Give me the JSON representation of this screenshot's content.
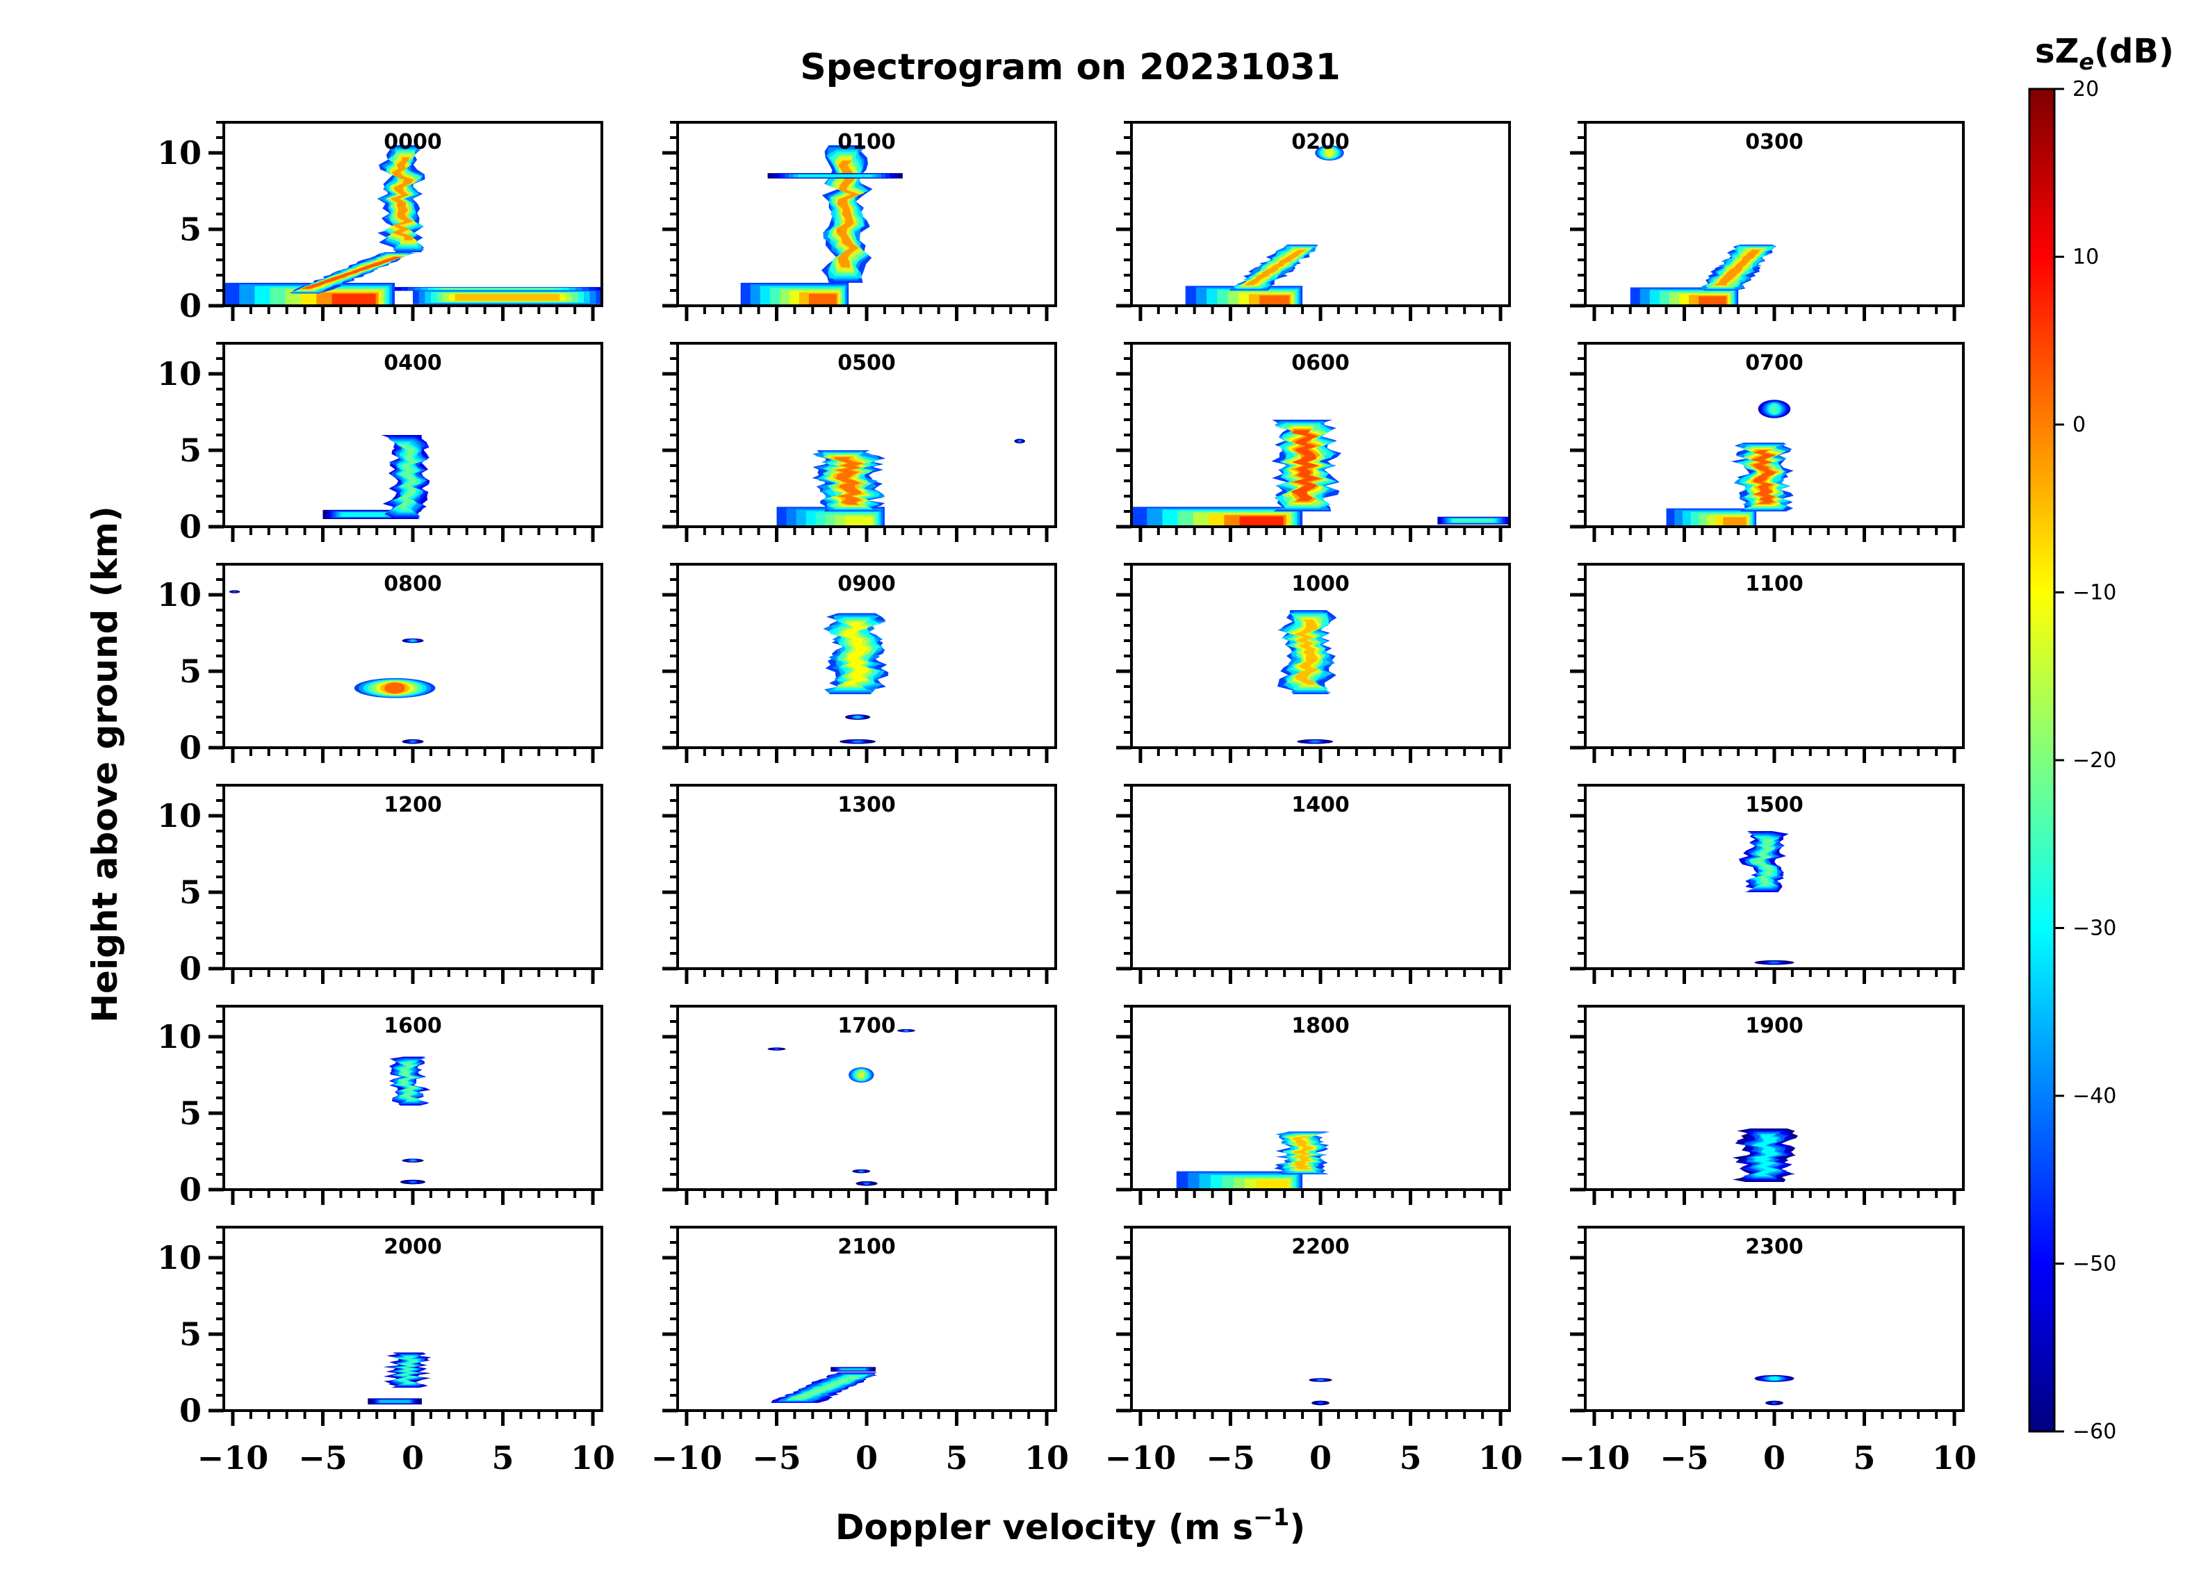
{
  "chart_data": {
    "type": "heatmap",
    "title": "Spectrogram on 20231031",
    "xlabel": "Doppler velocity (m s⁻¹)",
    "ylabel": "Height above ground (km)",
    "xlim": [
      -10.5,
      10.5
    ],
    "ylim": [
      0,
      12
    ],
    "x_ticks": [
      "−10",
      "−5",
      "0",
      "5",
      "10"
    ],
    "y_ticks": [
      "0",
      "5",
      "10"
    ],
    "colorbar": {
      "label": "sZe(dB)",
      "label_main": "sZ",
      "label_sub": "e",
      "label_tail": "(dB)",
      "range": [
        -60,
        20
      ],
      "ticks": [
        "20",
        "10",
        "0",
        "−10",
        "−20",
        "−30",
        "−40",
        "−50",
        "−60"
      ],
      "colormap": "jet",
      "colors": [
        "#00007f",
        "#0000ff",
        "#007fff",
        "#00ffff",
        "#7fff7f",
        "#ffff00",
        "#ff7f00",
        "#ff0000",
        "#7f0000"
      ]
    },
    "panels": [
      {
        "label": "0000",
        "features": [
          {
            "shape": "ground",
            "x0": -10.5,
            "x1": -1,
            "h": 1.5,
            "peak": 6
          },
          {
            "shape": "tilt",
            "xa": -6,
            "xb": -0.8,
            "y0": 0.8,
            "y1": 3.5,
            "w": 1.8,
            "peak": 3
          },
          {
            "shape": "column",
            "xc": -0.6,
            "y0": 3.5,
            "y1": 10.5,
            "w": 1.7,
            "peak": -2
          },
          {
            "shape": "band",
            "x0": -1,
            "x1": 10.5,
            "y": 1.1,
            "h": 0.25,
            "peak": -22
          },
          {
            "shape": "band",
            "x0": 0,
            "x1": 10.5,
            "y": 0.55,
            "h": 0.9,
            "peak": -5
          }
        ]
      },
      {
        "label": "0100",
        "features": [
          {
            "shape": "ground",
            "x0": -7,
            "x1": -1,
            "h": 1.5,
            "peak": 2
          },
          {
            "shape": "column",
            "xc": -1,
            "y0": 1.5,
            "y1": 10.5,
            "w": 1.9,
            "peak": -2
          },
          {
            "shape": "band",
            "x0": -5.5,
            "x1": 2,
            "y": 8.5,
            "h": 0.35,
            "peak": -30
          }
        ]
      },
      {
        "label": "0200",
        "features": [
          {
            "shape": "ground",
            "x0": -7.5,
            "x1": -1,
            "h": 1.3,
            "peak": 2
          },
          {
            "shape": "tilt",
            "xa": -4,
            "xb": -1,
            "y0": 1,
            "y1": 4,
            "w": 2,
            "peak": -3
          },
          {
            "shape": "blob",
            "xc": 0.5,
            "yc": 10,
            "w": 1.6,
            "h": 1,
            "peak": -12
          }
        ]
      },
      {
        "label": "0300",
        "features": [
          {
            "shape": "ground",
            "x0": -8,
            "x1": -2,
            "h": 1.2,
            "peak": 3
          },
          {
            "shape": "tilt",
            "xa": -3,
            "xb": -1,
            "y0": 1,
            "y1": 4,
            "w": 2.2,
            "peak": -2
          }
        ]
      },
      {
        "label": "0400",
        "features": [
          {
            "shape": "band",
            "x0": -5,
            "x1": -0.5,
            "y": 0.8,
            "h": 0.6,
            "peak": -30
          },
          {
            "shape": "column",
            "xc": -0.3,
            "y0": 0.5,
            "y1": 6,
            "w": 1.8,
            "peak": -22
          }
        ]
      },
      {
        "label": "0500",
        "features": [
          {
            "shape": "ground",
            "x0": -5,
            "x1": 1,
            "h": 1.3,
            "peak": -12
          },
          {
            "shape": "column",
            "xc": -1,
            "y0": 1,
            "y1": 5,
            "w": 3,
            "peak": 1
          },
          {
            "shape": "blob",
            "xc": 8.5,
            "yc": 5.6,
            "w": 0.6,
            "h": 0.3,
            "peak": -40
          }
        ]
      },
      {
        "label": "0600",
        "features": [
          {
            "shape": "ground",
            "x0": -10.5,
            "x1": -1,
            "h": 1.3,
            "peak": 7
          },
          {
            "shape": "column",
            "xc": -0.8,
            "y0": 1,
            "y1": 7,
            "w": 2.8,
            "peak": 4
          },
          {
            "shape": "band",
            "x0": 6.5,
            "x1": 10.5,
            "y": 0.4,
            "h": 0.5,
            "peak": -25
          }
        ]
      },
      {
        "label": "0700",
        "features": [
          {
            "shape": "ground",
            "x0": -6,
            "x1": -1,
            "h": 1.2,
            "peak": -2
          },
          {
            "shape": "column",
            "xc": -0.6,
            "y0": 1,
            "y1": 5.5,
            "w": 2.4,
            "peak": 3
          },
          {
            "shape": "blob",
            "xc": 0,
            "yc": 7.7,
            "w": 1.8,
            "h": 1.2,
            "peak": -25
          }
        ]
      },
      {
        "label": "0800",
        "features": [
          {
            "shape": "blob",
            "xc": -1,
            "yc": 3.9,
            "w": 4.5,
            "h": 1.3,
            "peak": 2
          },
          {
            "shape": "blob",
            "xc": 0,
            "yc": 7,
            "w": 1.2,
            "h": 0.3,
            "peak": -35
          },
          {
            "shape": "blob",
            "xc": 0,
            "yc": 0.4,
            "w": 1.2,
            "h": 0.3,
            "peak": -40
          },
          {
            "shape": "blob",
            "xc": -9.9,
            "yc": 10.2,
            "w": 0.6,
            "h": 0.2,
            "peak": -45
          }
        ]
      },
      {
        "label": "0900",
        "features": [
          {
            "shape": "column",
            "xc": -0.6,
            "y0": 3.5,
            "y1": 8.8,
            "w": 2.6,
            "peak": -10
          },
          {
            "shape": "blob",
            "xc": -0.5,
            "yc": 2,
            "w": 1.4,
            "h": 0.35,
            "peak": -35
          },
          {
            "shape": "blob",
            "xc": -0.5,
            "yc": 0.4,
            "w": 2,
            "h": 0.3,
            "peak": -40
          }
        ]
      },
      {
        "label": "1000",
        "features": [
          {
            "shape": "column",
            "xc": -0.8,
            "y0": 3.5,
            "y1": 9,
            "w": 2.3,
            "peak": -5
          },
          {
            "shape": "blob",
            "xc": -0.3,
            "yc": 0.4,
            "w": 2,
            "h": 0.3,
            "peak": -40
          }
        ]
      },
      {
        "label": "1100",
        "features": []
      },
      {
        "label": "1200",
        "features": []
      },
      {
        "label": "1300",
        "features": []
      },
      {
        "label": "1400",
        "features": []
      },
      {
        "label": "1500",
        "features": [
          {
            "shape": "column",
            "xc": -0.6,
            "y0": 5,
            "y1": 9,
            "w": 1.7,
            "peak": -22
          },
          {
            "shape": "blob",
            "xc": 0,
            "yc": 0.4,
            "w": 2.2,
            "h": 0.3,
            "peak": -42
          }
        ]
      },
      {
        "label": "1600",
        "features": [
          {
            "shape": "column",
            "xc": -0.3,
            "y0": 5.5,
            "y1": 8.7,
            "w": 1.5,
            "peak": -22
          },
          {
            "shape": "blob",
            "xc": 0,
            "yc": 1.9,
            "w": 1.2,
            "h": 0.25,
            "peak": -38
          },
          {
            "shape": "blob",
            "xc": 0,
            "yc": 0.5,
            "w": 1.4,
            "h": 0.3,
            "peak": -42
          }
        ]
      },
      {
        "label": "1700",
        "features": [
          {
            "shape": "blob",
            "xc": -0.3,
            "yc": 7.5,
            "w": 1.4,
            "h": 1,
            "peak": -15
          },
          {
            "shape": "blob",
            "xc": -5,
            "yc": 9.2,
            "w": 1,
            "h": 0.2,
            "peak": -45
          },
          {
            "shape": "blob",
            "xc": 2.2,
            "yc": 10.4,
            "w": 1,
            "h": 0.2,
            "peak": -40
          },
          {
            "shape": "blob",
            "xc": -0.3,
            "yc": 1.2,
            "w": 1,
            "h": 0.25,
            "peak": -40
          },
          {
            "shape": "blob",
            "xc": 0,
            "yc": 0.4,
            "w": 1.2,
            "h": 0.3,
            "peak": -42
          }
        ]
      },
      {
        "label": "1800",
        "features": [
          {
            "shape": "ground",
            "x0": -8,
            "x1": -1,
            "h": 1.2,
            "peak": -8
          },
          {
            "shape": "column",
            "xc": -1,
            "y0": 1,
            "y1": 3.8,
            "w": 2.2,
            "peak": -5
          }
        ]
      },
      {
        "label": "1900",
        "features": [
          {
            "shape": "column",
            "xc": -0.5,
            "y0": 0.5,
            "y1": 4,
            "w": 2.6,
            "peak": -30
          }
        ]
      },
      {
        "label": "2000",
        "features": [
          {
            "shape": "column",
            "xc": -0.3,
            "y0": 1.5,
            "y1": 3.8,
            "w": 1.6,
            "peak": -25
          },
          {
            "shape": "band",
            "x0": -2.5,
            "x1": 0.5,
            "y": 0.6,
            "h": 0.4,
            "peak": -35
          }
        ]
      },
      {
        "label": "2100",
        "features": [
          {
            "shape": "tilt",
            "xa": -4,
            "xb": -0.5,
            "y0": 0.5,
            "y1": 2.5,
            "w": 2.6,
            "peak": -22
          },
          {
            "shape": "band",
            "x0": -2,
            "x1": 0.5,
            "y": 2.7,
            "h": 0.3,
            "peak": -35
          }
        ]
      },
      {
        "label": "2200",
        "features": [
          {
            "shape": "blob",
            "xc": 0,
            "yc": 2,
            "w": 1.3,
            "h": 0.25,
            "peak": -40
          },
          {
            "shape": "blob",
            "xc": 0,
            "yc": 0.5,
            "w": 1,
            "h": 0.3,
            "peak": -45
          }
        ]
      },
      {
        "label": "2300",
        "features": [
          {
            "shape": "blob",
            "xc": 0,
            "yc": 2.1,
            "w": 2.2,
            "h": 0.45,
            "peak": -30
          },
          {
            "shape": "blob",
            "xc": 0,
            "yc": 0.5,
            "w": 1,
            "h": 0.3,
            "peak": -45
          }
        ]
      }
    ]
  }
}
